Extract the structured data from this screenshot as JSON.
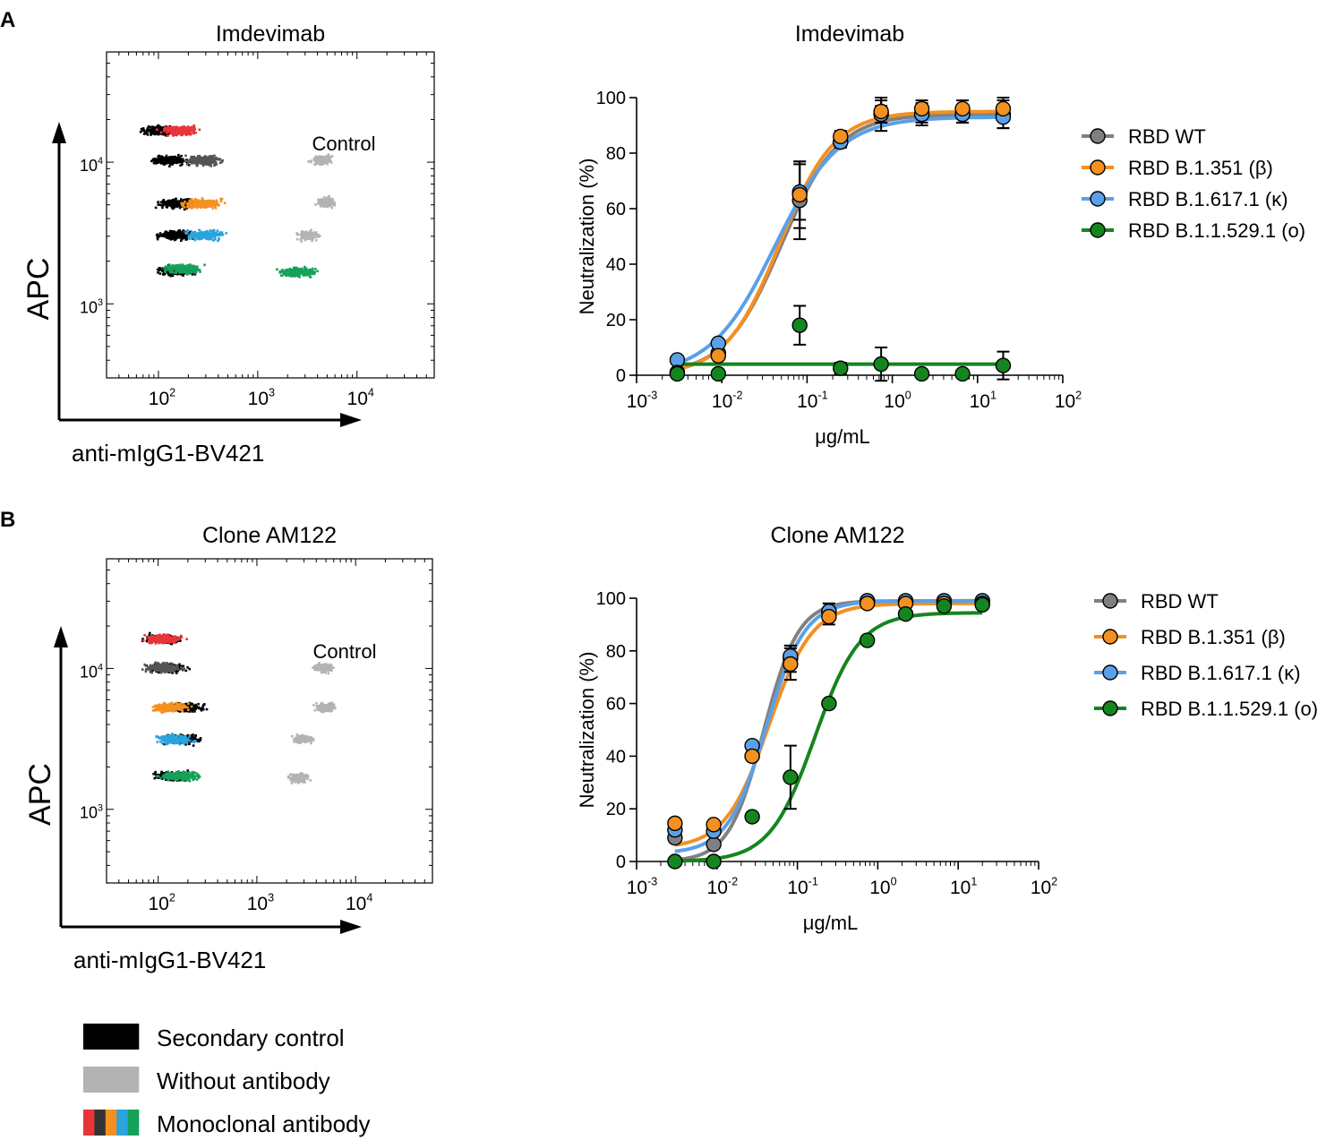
{
  "figure": {
    "panel_a_label": "A",
    "panel_b_label": "B",
    "flow_legend": {
      "items": [
        {
          "label": "Secondary control",
          "colors": [
            "#000000"
          ]
        },
        {
          "label": "Without antibody",
          "colors": [
            "#b3b3b3"
          ]
        },
        {
          "label": "Monoclonal antibody",
          "colors": [
            "#e8353a",
            "#333333",
            "#f39020",
            "#2aa4dd",
            "#15a15a"
          ]
        }
      ]
    }
  },
  "chart_data": [
    {
      "id": "A-flow",
      "type": "scatter",
      "title": "Imdevimab",
      "xlabel": "anti-mIgG1-BV421",
      "ylabel": "APC",
      "x_ticks": [
        "10",
        "10",
        "10"
      ],
      "x_tick_exps": [
        "2",
        "3",
        "4"
      ],
      "y_ticks": [
        "10",
        "10"
      ],
      "y_tick_exps": [
        "4",
        "3"
      ],
      "annotation": "Control",
      "scale": "log",
      "xlim": [
        30,
        60000
      ],
      "ylim": [
        300,
        60000
      ],
      "populations": [
        {
          "group": "secondary",
          "color": "#000000",
          "x": 100,
          "y": 17000
        },
        {
          "group": "antibody",
          "color": "#e8353a",
          "x": 160,
          "y": 17000
        },
        {
          "group": "secondary",
          "color": "#000000",
          "x": 130,
          "y": 10500
        },
        {
          "group": "antibody",
          "color": "#555555",
          "x": 280,
          "y": 10500
        },
        {
          "group": "secondary",
          "color": "#000000",
          "x": 150,
          "y": 5200
        },
        {
          "group": "antibody",
          "color": "#f39020",
          "x": 270,
          "y": 5200
        },
        {
          "group": "secondary",
          "color": "#000000",
          "x": 150,
          "y": 3100
        },
        {
          "group": "antibody",
          "color": "#2aa4dd",
          "x": 280,
          "y": 3100
        },
        {
          "group": "secondary",
          "color": "#000000",
          "x": 150,
          "y": 1750
        },
        {
          "group": "antibody",
          "color": "#15a15a",
          "x": 170,
          "y": 1800
        },
        {
          "group": "control",
          "color": "#b3b3b3",
          "x": 4300,
          "y": 10500
        },
        {
          "group": "control",
          "color": "#b3b3b3",
          "x": 4800,
          "y": 5300
        },
        {
          "group": "control",
          "color": "#b3b3b3",
          "x": 3200,
          "y": 3100
        },
        {
          "group": "antibody",
          "color": "#15a15a",
          "x": 2500,
          "y": 1700
        }
      ]
    },
    {
      "id": "A-neut",
      "type": "line",
      "title": "Imdevimab",
      "xlabel": "μg/mL",
      "ylabel": "Neutralization (%)",
      "x_scale": "log10",
      "xlim": [
        0.001,
        100
      ],
      "ylim": [
        0,
        100
      ],
      "x_ticks": [
        "10",
        "10",
        "10",
        "10",
        "10",
        "10"
      ],
      "x_tick_exps": [
        "-3",
        "-2",
        "-1",
        "0",
        "1",
        "2"
      ],
      "y_ticks": [
        "0",
        "20",
        "40",
        "60",
        "80",
        "100"
      ],
      "x": [
        0.003,
        0.0091,
        0.082,
        0.247,
        0.74,
        2.22,
        6.67,
        20
      ],
      "series": [
        {
          "name": "RBD WT",
          "color": "#808080",
          "values": [
            1,
            8,
            63,
            84,
            94,
            94,
            94,
            94
          ],
          "errors": [
            0,
            0,
            14,
            2,
            6,
            4,
            3,
            5
          ],
          "curve": {
            "bottom": 0,
            "top": 94,
            "ec50": 0.05,
            "hill": 1.3
          }
        },
        {
          "name": "RBD B.1.351 (β)",
          "color": "#f39020",
          "values": [
            1,
            7,
            65,
            86,
            95,
            96,
            96,
            96
          ],
          "errors": [
            0,
            0,
            12,
            2,
            4,
            3,
            3,
            4
          ],
          "curve": {
            "bottom": 0,
            "top": 95,
            "ec50": 0.048,
            "hill": 1.35
          }
        },
        {
          "name": "RBD B.1.617.1 (κ)",
          "color": "#5aa0e8",
          "values": [
            5.5,
            11.5,
            66,
            84,
            94,
            94,
            94,
            93
          ],
          "errors": [
            0,
            0,
            10,
            2,
            3,
            3,
            3,
            4
          ],
          "curve": {
            "bottom": 0,
            "top": 93,
            "ec50": 0.042,
            "hill": 1.15
          }
        },
        {
          "name": "RBD B.1.1.529.1 (ο)",
          "color": "#15851f",
          "values": [
            0.5,
            0.5,
            18,
            2.5,
            4,
            0.5,
            0.5,
            3.5
          ],
          "errors": [
            0,
            0,
            7,
            2,
            6,
            0,
            0,
            5
          ],
          "curve": {
            "flat": 4
          }
        }
      ]
    },
    {
      "id": "B-flow",
      "type": "scatter",
      "title": "Clone AM122",
      "xlabel": "anti-mIgG1-BV421",
      "ylabel": "APC",
      "x_ticks": [
        "10",
        "10",
        "10"
      ],
      "x_tick_exps": [
        "2",
        "3",
        "4"
      ],
      "y_ticks": [
        "10",
        "10"
      ],
      "y_tick_exps": [
        "4",
        "3"
      ],
      "annotation": "Control",
      "scale": "log",
      "xlim": [
        30,
        60000
      ],
      "ylim": [
        300,
        60000
      ],
      "populations": [
        {
          "group": "secondary",
          "color": "#000000",
          "x": 110,
          "y": 16500
        },
        {
          "group": "antibody",
          "color": "#e8353a",
          "x": 110,
          "y": 16500
        },
        {
          "group": "secondary",
          "color": "#000000",
          "x": 120,
          "y": 10300
        },
        {
          "group": "antibody",
          "color": "#555555",
          "x": 110,
          "y": 10300
        },
        {
          "group": "secondary",
          "color": "#000000",
          "x": 180,
          "y": 5400
        },
        {
          "group": "antibody",
          "color": "#f39020",
          "x": 130,
          "y": 5400
        },
        {
          "group": "secondary",
          "color": "#000000",
          "x": 170,
          "y": 3200
        },
        {
          "group": "antibody",
          "color": "#2aa4dd",
          "x": 140,
          "y": 3200
        },
        {
          "group": "secondary",
          "color": "#000000",
          "x": 140,
          "y": 1750
        },
        {
          "group": "antibody",
          "color": "#15a15a",
          "x": 160,
          "y": 1750
        },
        {
          "group": "control",
          "color": "#b3b3b3",
          "x": 4500,
          "y": 10300
        },
        {
          "group": "control",
          "color": "#b3b3b3",
          "x": 4800,
          "y": 5400
        },
        {
          "group": "control",
          "color": "#b3b3b3",
          "x": 2800,
          "y": 3200
        },
        {
          "group": "control",
          "color": "#b3b3b3",
          "x": 2600,
          "y": 1700
        }
      ]
    },
    {
      "id": "B-neut",
      "type": "line",
      "title": "Clone AM122",
      "xlabel": "μg/mL",
      "ylabel": "Neutralization (%)",
      "x_scale": "log10",
      "xlim": [
        0.001,
        100
      ],
      "ylim": [
        0,
        100
      ],
      "x_ticks": [
        "10",
        "10",
        "10",
        "10",
        "10",
        "10"
      ],
      "x_tick_exps": [
        "-3",
        "-2",
        "-1",
        "0",
        "1",
        "2"
      ],
      "y_ticks": [
        "0",
        "20",
        "40",
        "60",
        "80",
        "100"
      ],
      "x": [
        0.003,
        0.0091,
        0.0274,
        0.082,
        0.247,
        0.74,
        2.22,
        6.67,
        20
      ],
      "series": [
        {
          "name": "RBD WT",
          "color": "#808080",
          "values": [
            9,
            6.5,
            40,
            77,
            95,
            99,
            99,
            99,
            99
          ],
          "errors": [
            0,
            0,
            0,
            5,
            3,
            0,
            0,
            0,
            0
          ],
          "curve": {
            "bottom": 0,
            "top": 99,
            "ec50": 0.038,
            "hill": 2.0
          }
        },
        {
          "name": "RBD B.1.351 (β)",
          "color": "#f39020",
          "values": [
            14.5,
            14,
            40,
            75,
            93,
            98,
            98,
            98,
            98
          ],
          "errors": [
            0,
            0,
            0,
            6,
            3,
            0,
            0,
            0,
            0
          ],
          "curve": {
            "bottom": 5,
            "top": 98,
            "ec50": 0.044,
            "hill": 1.6
          }
        },
        {
          "name": "RBD B.1.617.1 (κ)",
          "color": "#5aa0e8",
          "values": [
            12,
            11.5,
            44,
            78,
            95,
            99,
            99,
            99,
            99
          ],
          "errors": [
            0,
            0,
            0,
            4,
            3,
            0,
            0,
            0,
            0
          ],
          "curve": {
            "bottom": 3,
            "top": 99,
            "ec50": 0.041,
            "hill": 1.8
          }
        },
        {
          "name": "RBD B.1.1.529.1 (ο)",
          "color": "#15851f",
          "values": [
            0,
            0,
            17,
            32,
            60,
            84,
            94,
            97,
            97.5
          ],
          "errors": [
            0,
            0,
            0,
            12,
            0,
            0,
            0,
            0,
            0
          ],
          "curve": {
            "bottom": 0,
            "top": 94.5,
            "ec50": 0.165,
            "hill": 1.55
          }
        }
      ]
    }
  ]
}
